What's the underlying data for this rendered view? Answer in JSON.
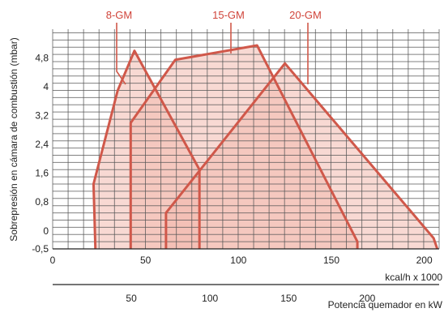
{
  "chart_data": {
    "type": "area",
    "ylabel": "Sobrepresión en cámara de combustión (mbar)",
    "x_top_label": "kcal/h x 1000",
    "x_bottom_label": "Potencia quemador en kW",
    "x_ticks": [
      "0",
      "50",
      "100",
      "150",
      "200"
    ],
    "x_tick_values": [
      0,
      50,
      100,
      150,
      200
    ],
    "xlim": [
      0,
      208
    ],
    "x2_ticks": [
      "50",
      "100",
      "150",
      "200"
    ],
    "x2_tick_values": [
      50,
      100,
      150,
      200
    ],
    "y_ticks": [
      "-0,5",
      "0",
      "0,8",
      "1,6",
      "2,4",
      "3,2",
      "4",
      "4,8"
    ],
    "y_tick_values": [
      -0.5,
      0,
      0.8,
      1.6,
      2.4,
      3.2,
      4,
      4.8
    ],
    "ylim": [
      -0.5,
      5.6
    ],
    "grid": true,
    "colors": {
      "line": "#d0584a",
      "fill": "#f2b9ae",
      "label": "#d0443a",
      "grid": "#555555"
    },
    "series": [
      {
        "name": "8-GM",
        "points": [
          [
            23,
            -0.5
          ],
          [
            22,
            1.3
          ],
          [
            35,
            3.9
          ],
          [
            44,
            5.0
          ],
          [
            79,
            1.7
          ],
          [
            79,
            -0.5
          ]
        ]
      },
      {
        "name": "15-GM",
        "points": [
          [
            42,
            -0.5
          ],
          [
            42,
            3.0
          ],
          [
            66,
            4.75
          ],
          [
            110,
            5.15
          ],
          [
            164,
            -0.3
          ],
          [
            164,
            -0.5
          ]
        ]
      },
      {
        "name": "20-GM",
        "points": [
          [
            61,
            -0.5
          ],
          [
            61,
            0.5
          ],
          [
            125,
            4.65
          ],
          [
            205,
            -0.2
          ],
          [
            207,
            -0.5
          ]
        ]
      }
    ]
  }
}
